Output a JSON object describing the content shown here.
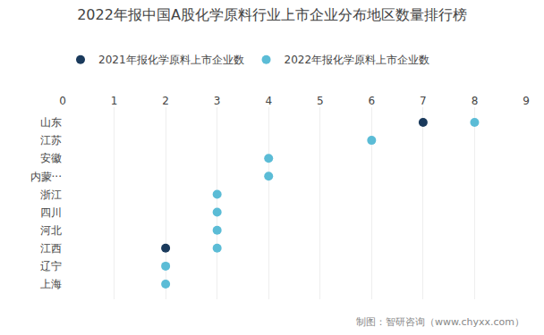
{
  "chart_data": {
    "type": "scatter",
    "title": "2022年报中国A股化学原料行业上市企业分布地区数量排行榜",
    "categories": [
      "山东",
      "江苏",
      "安徽",
      "内蒙···",
      "浙江",
      "四川",
      "河北",
      "江西",
      "辽宁",
      "上海"
    ],
    "series": [
      {
        "name": "2021年报化学原料上市企业数",
        "color": "#1a3a5c",
        "values": [
          7,
          null,
          null,
          null,
          null,
          null,
          null,
          2,
          null,
          null
        ]
      },
      {
        "name": "2022年报化学原料上市企业数",
        "color": "#5bbcd6",
        "values": [
          8,
          6,
          4,
          4,
          3,
          3,
          3,
          3,
          2,
          2
        ]
      }
    ],
    "xlim": [
      0,
      9
    ],
    "xticks": [
      0,
      1,
      2,
      3,
      4,
      5,
      6,
      7,
      8,
      9
    ],
    "grid": true,
    "legend": "top-left",
    "marker": "circle",
    "annotations": [
      "制图：智研咨询（www.chyxx.com）"
    ]
  }
}
